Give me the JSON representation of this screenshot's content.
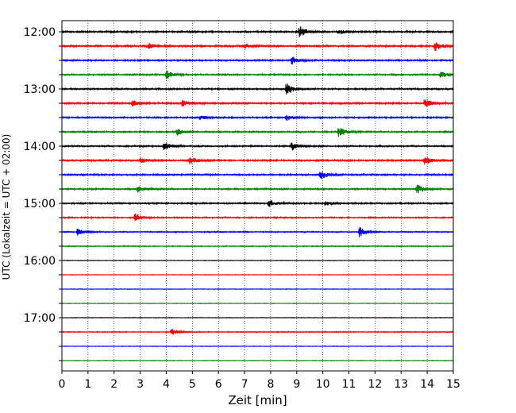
{
  "chart_data": {
    "type": "line",
    "title": "",
    "xlabel": "Zeit  [min]",
    "ylabel": "UTC (Lokalzeit = UTC + 02:00)",
    "xlim": [
      0,
      15
    ],
    "x_ticks": [
      0,
      1,
      2,
      3,
      4,
      5,
      6,
      7,
      8,
      9,
      10,
      11,
      12,
      13,
      14,
      15
    ],
    "y_tick_labels": [
      "12:00",
      "13:00",
      "14:00",
      "15:00",
      "16:00",
      "17:00"
    ],
    "grid": "vertical-dotted",
    "legend": "none",
    "colors": [
      "#000000",
      "#ff0000",
      "#0000ff",
      "#008000"
    ],
    "traces": [
      {
        "start": "12:00",
        "color": "#000000",
        "noise": 0.9,
        "events": [
          {
            "t": 9.1,
            "amp": 3.0
          },
          {
            "t": 10.6,
            "amp": 1.2
          }
        ]
      },
      {
        "start": "12:15",
        "color": "#ff0000",
        "noise": 0.9,
        "events": [
          {
            "t": 3.3,
            "amp": 1.5
          },
          {
            "t": 7.0,
            "amp": 1.2
          },
          {
            "t": 14.3,
            "amp": 2.5
          }
        ]
      },
      {
        "start": "12:30",
        "color": "#0000ff",
        "noise": 0.8,
        "events": [
          {
            "t": 8.8,
            "amp": 2.0
          }
        ]
      },
      {
        "start": "12:45",
        "color": "#008000",
        "noise": 0.8,
        "events": [
          {
            "t": 4.0,
            "amp": 2.5
          },
          {
            "t": 14.5,
            "amp": 2.0
          }
        ]
      },
      {
        "start": "13:00",
        "color": "#000000",
        "noise": 0.8,
        "events": [
          {
            "t": 8.6,
            "amp": 3.0
          }
        ]
      },
      {
        "start": "13:15",
        "color": "#ff0000",
        "noise": 0.9,
        "events": [
          {
            "t": 2.7,
            "amp": 1.5
          },
          {
            "t": 4.6,
            "amp": 1.8
          },
          {
            "t": 13.9,
            "amp": 2.3
          }
        ]
      },
      {
        "start": "13:30",
        "color": "#0000ff",
        "noise": 0.8,
        "events": [
          {
            "t": 5.3,
            "amp": 1.2
          },
          {
            "t": 8.6,
            "amp": 1.6
          }
        ]
      },
      {
        "start": "13:45",
        "color": "#008000",
        "noise": 0.8,
        "events": [
          {
            "t": 4.4,
            "amp": 2.0
          },
          {
            "t": 10.6,
            "amp": 2.5
          }
        ]
      },
      {
        "start": "14:00",
        "color": "#000000",
        "noise": 0.8,
        "events": [
          {
            "t": 3.9,
            "amp": 2.0
          },
          {
            "t": 8.8,
            "amp": 2.0
          }
        ]
      },
      {
        "start": "14:15",
        "color": "#ff0000",
        "noise": 0.9,
        "events": [
          {
            "t": 3.0,
            "amp": 1.2
          },
          {
            "t": 4.9,
            "amp": 2.0
          },
          {
            "t": 13.9,
            "amp": 2.0
          }
        ]
      },
      {
        "start": "14:30",
        "color": "#0000ff",
        "noise": 0.8,
        "events": [
          {
            "t": 9.9,
            "amp": 2.2
          }
        ]
      },
      {
        "start": "14:45",
        "color": "#008000",
        "noise": 0.8,
        "events": [
          {
            "t": 2.9,
            "amp": 1.5
          },
          {
            "t": 13.6,
            "amp": 2.5
          }
        ]
      },
      {
        "start": "15:00",
        "color": "#000000",
        "noise": 0.8,
        "events": [
          {
            "t": 7.9,
            "amp": 2.0
          },
          {
            "t": 10.1,
            "amp": 1.0
          }
        ]
      },
      {
        "start": "15:15",
        "color": "#ff0000",
        "noise": 0.7,
        "events": [
          {
            "t": 2.8,
            "amp": 2.2
          }
        ]
      },
      {
        "start": "15:30",
        "color": "#0000ff",
        "noise": 0.6,
        "events": [
          {
            "t": 0.6,
            "amp": 1.8
          },
          {
            "t": 11.4,
            "amp": 2.5
          }
        ]
      },
      {
        "start": "15:45",
        "color": "#008000",
        "noise": 0.5,
        "events": []
      },
      {
        "start": "16:00",
        "color": "#000000",
        "noise": 0.3,
        "events": []
      },
      {
        "start": "16:15",
        "color": "#ff0000",
        "noise": 0.3,
        "events": []
      },
      {
        "start": "16:30",
        "color": "#0000ff",
        "noise": 0.3,
        "events": []
      },
      {
        "start": "16:45",
        "color": "#008000",
        "noise": 0.3,
        "events": []
      },
      {
        "start": "17:00",
        "color": "#000000",
        "noise": 0.3,
        "events": []
      },
      {
        "start": "17:15",
        "color": "#ff0000",
        "noise": 0.5,
        "events": [
          {
            "t": 4.2,
            "amp": 1.8
          }
        ]
      },
      {
        "start": "17:30",
        "color": "#0000ff",
        "noise": 0.3,
        "events": []
      },
      {
        "start": "17:45",
        "color": "#008000",
        "noise": 0.3,
        "events": []
      }
    ]
  }
}
